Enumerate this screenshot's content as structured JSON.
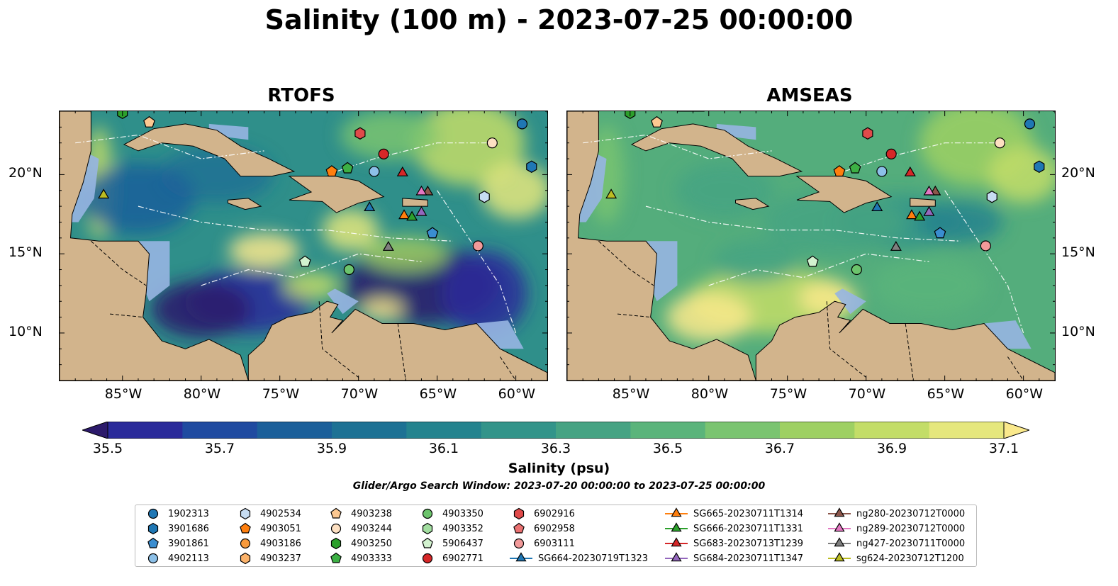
{
  "title": "Salinity (100 m) - 2023-07-25 00:00:00",
  "panels": [
    {
      "title": "RTOFS"
    },
    {
      "title": "AMSEAS"
    }
  ],
  "lon_ticks": [
    "85°W",
    "80°W",
    "75°W",
    "70°W",
    "65°W",
    "60°W"
  ],
  "lat_ticks": [
    "20°N",
    "15°N",
    "10°N"
  ],
  "colorbar": {
    "label": "Salinity (psu)",
    "ticks": [
      "35.5",
      "35.7",
      "35.9",
      "36.1",
      "36.3",
      "36.5",
      "36.7",
      "36.9",
      "37.1"
    ],
    "colors": [
      "#2c1a6b",
      "#2a2a9a",
      "#1f4aa0",
      "#1b5f9a",
      "#1d7194",
      "#24838e",
      "#33948a",
      "#46a383",
      "#5bb47b",
      "#7ac470",
      "#9ed063",
      "#c3dd68",
      "#e5e77d",
      "#fae98c"
    ]
  },
  "search_window": "Glider/Argo Search Window: 2023-07-20 00:00:00 to 2023-07-25 00:00:00",
  "legend": {
    "columns": [
      [
        {
          "label": "1902313",
          "marker": "circle",
          "color": "#1f77b4"
        },
        {
          "label": "3901686",
          "marker": "hexagon",
          "color": "#1f77b4"
        },
        {
          "label": "3901861",
          "marker": "pentagon",
          "color": "#3a8dd0"
        },
        {
          "label": "4902113",
          "marker": "circle",
          "color": "#8cc0e8"
        }
      ],
      [
        {
          "label": "4902534",
          "marker": "hexagon",
          "color": "#c6dcf2"
        },
        {
          "label": "4903051",
          "marker": "pentagon",
          "color": "#ff7f0e"
        },
        {
          "label": "4903186",
          "marker": "circle",
          "color": "#f89a3c"
        },
        {
          "label": "4903237",
          "marker": "hexagon",
          "color": "#fbb26a"
        }
      ],
      [
        {
          "label": "4903238",
          "marker": "pentagon",
          "color": "#fcc891"
        },
        {
          "label": "4903244",
          "marker": "circle",
          "color": "#fde0c2"
        },
        {
          "label": "4903250",
          "marker": "hexagon",
          "color": "#2ca02c"
        },
        {
          "label": "4903333",
          "marker": "pentagon",
          "color": "#3cb044"
        }
      ],
      [
        {
          "label": "4903350",
          "marker": "circle",
          "color": "#6cc46c"
        },
        {
          "label": "4903352",
          "marker": "hexagon",
          "color": "#a2dea0"
        },
        {
          "label": "5906437",
          "marker": "pentagon",
          "color": "#d2f2cf"
        },
        {
          "label": "6902771",
          "marker": "circle",
          "color": "#d62728"
        }
      ],
      [
        {
          "label": "6902916",
          "marker": "hexagon",
          "color": "#e04a4a"
        },
        {
          "label": "6902958",
          "marker": "pentagon",
          "color": "#ea7171"
        },
        {
          "label": "6903111",
          "marker": "circle",
          "color": "#f29a9a"
        },
        {
          "label": "SG664-20230719T1323",
          "marker": "triangle",
          "color": "#1f77b4",
          "line": true
        }
      ],
      [
        {
          "label": "SG665-20230711T1314",
          "marker": "triangle",
          "color": "#ff7f0e",
          "line": true
        },
        {
          "label": "SG666-20230711T1331",
          "marker": "triangle",
          "color": "#2ca02c",
          "line": true
        },
        {
          "label": "SG683-20230713T1239",
          "marker": "triangle",
          "color": "#d62728",
          "line": true
        },
        {
          "label": "SG684-20230711T1347",
          "marker": "triangle",
          "color": "#9467bd",
          "line": true
        }
      ],
      [
        {
          "label": "ng280-20230712T0000",
          "marker": "triangle",
          "color": "#8c564b",
          "line": true
        },
        {
          "label": "ng289-20230712T0000",
          "marker": "triangle",
          "color": "#e377c2",
          "line": true
        },
        {
          "label": "ng427-20230711T0000",
          "marker": "triangle",
          "color": "#7f7f7f",
          "line": true
        },
        {
          "label": "sg624-20230712T1200",
          "marker": "triangle",
          "color": "#bcbd22",
          "line": true
        }
      ]
    ]
  },
  "map_extent": {
    "lon": [
      -89,
      -58
    ],
    "lat": [
      7,
      24
    ]
  },
  "observations": [
    {
      "id": "1902313",
      "lon": -59.6,
      "lat": 23.2,
      "marker": "circle",
      "color": "#1f77b4"
    },
    {
      "id": "3901686",
      "lon": -59.0,
      "lat": 20.5,
      "marker": "hexagon",
      "color": "#1f77b4"
    },
    {
      "id": "3901861",
      "lon": -65.3,
      "lat": 16.3,
      "marker": "pentagon",
      "color": "#3a8dd0"
    },
    {
      "id": "4902113",
      "lon": -69.0,
      "lat": 20.2,
      "marker": "circle",
      "color": "#8cc0e8"
    },
    {
      "id": "4902534",
      "lon": -62.0,
      "lat": 18.6,
      "marker": "hexagon",
      "color": "#c6dcf2"
    },
    {
      "id": "4903051",
      "lon": -71.7,
      "lat": 20.2,
      "marker": "pentagon",
      "color": "#ff7f0e"
    },
    {
      "id": "4903238",
      "lon": -83.3,
      "lat": 23.3,
      "marker": "pentagon",
      "color": "#fcc891"
    },
    {
      "id": "4903244",
      "lon": -61.5,
      "lat": 22.0,
      "marker": "circle",
      "color": "#fde0c2"
    },
    {
      "id": "4903250",
      "lon": -85.0,
      "lat": 23.9,
      "marker": "hexagon",
      "color": "#2ca02c"
    },
    {
      "id": "4903333",
      "lon": -70.7,
      "lat": 20.4,
      "marker": "pentagon",
      "color": "#3cb044"
    },
    {
      "id": "4903350",
      "lon": -70.6,
      "lat": 14.0,
      "marker": "circle",
      "color": "#6cc46c"
    },
    {
      "id": "5906437",
      "lon": -73.4,
      "lat": 14.5,
      "marker": "pentagon",
      "color": "#d2f2cf"
    },
    {
      "id": "6902771",
      "lon": -68.4,
      "lat": 21.3,
      "marker": "circle",
      "color": "#d62728"
    },
    {
      "id": "6902916",
      "lon": -69.9,
      "lat": 22.6,
      "marker": "hexagon",
      "color": "#e04a4a"
    },
    {
      "id": "6903111",
      "lon": -62.4,
      "lat": 15.5,
      "marker": "circle",
      "color": "#f29a9a"
    },
    {
      "id": "SG664",
      "lon": -69.3,
      "lat": 17.9,
      "marker": "triangle",
      "color": "#1f77b4"
    },
    {
      "id": "SG665",
      "lon": -67.1,
      "lat": 17.4,
      "marker": "triangle",
      "color": "#ff7f0e"
    },
    {
      "id": "SG666",
      "lon": -66.6,
      "lat": 17.3,
      "marker": "triangle",
      "color": "#2ca02c"
    },
    {
      "id": "SG683",
      "lon": -67.2,
      "lat": 20.1,
      "marker": "triangle",
      "color": "#d62728"
    },
    {
      "id": "SG684",
      "lon": -66.0,
      "lat": 17.6,
      "marker": "triangle",
      "color": "#9467bd"
    },
    {
      "id": "ng280",
      "lon": -65.6,
      "lat": 18.9,
      "marker": "triangle",
      "color": "#8c564b"
    },
    {
      "id": "ng289",
      "lon": -66.0,
      "lat": 18.9,
      "marker": "triangle",
      "color": "#e377c2"
    },
    {
      "id": "ng427",
      "lon": -68.1,
      "lat": 15.4,
      "marker": "triangle",
      "color": "#7f7f7f"
    },
    {
      "id": "sg624",
      "lon": -86.2,
      "lat": 18.7,
      "marker": "triangle",
      "color": "#bcbd22"
    }
  ],
  "colors": {
    "land": "#d2b48c",
    "shelf_water": "#97b5e2",
    "rtofs_base": "#2f8f8a",
    "amseas_base": "#54ad7c"
  }
}
